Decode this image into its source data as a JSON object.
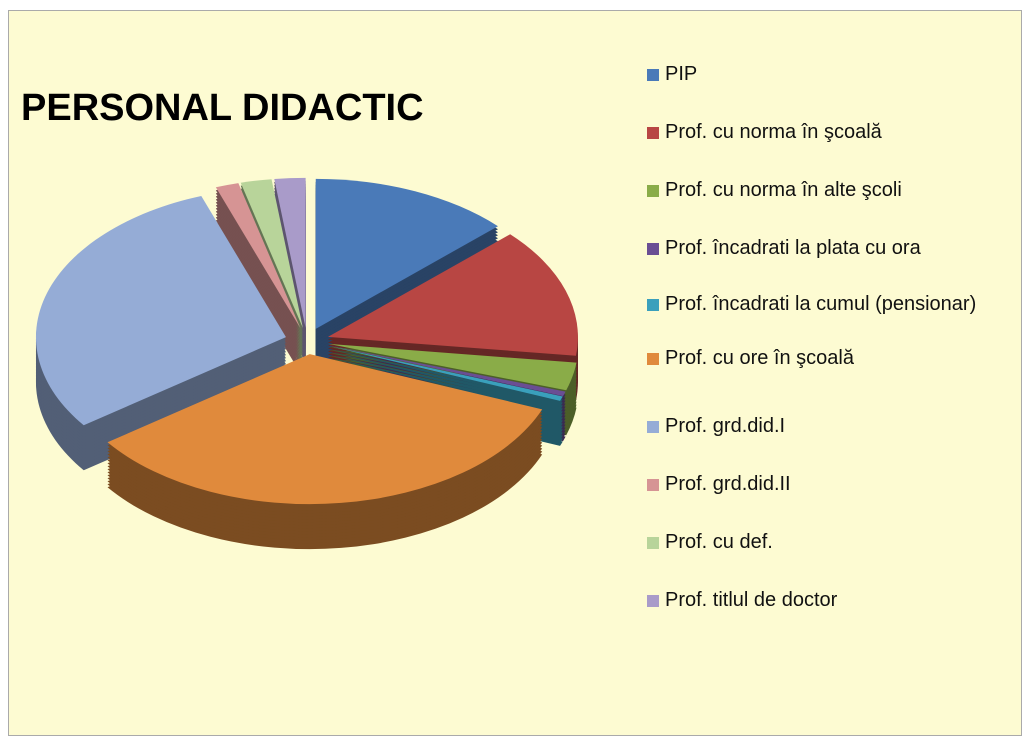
{
  "chart_data": {
    "type": "pie3d",
    "title": "PERSONAL DIDACTIC",
    "series": [
      {
        "name": "PIP",
        "color": "#4a7ab8",
        "value": 13
      },
      {
        "name": "Prof. cu norma în şcoală",
        "color": "#b84643",
        "value": 14
      },
      {
        "name": "Prof. cu norma în alte şcoli",
        "color": "#8aac48",
        "value": 3
      },
      {
        "name": "Prof. încadrati la plata cu ora",
        "color": "#6a4e94",
        "value": 0.5
      },
      {
        "name": "Prof. încadrati la cumul (pensionar)",
        "color": "#3aa0bc",
        "value": 0.5
      },
      {
        "name": "Prof. cu ore în şcoală",
        "color": "#e08a3c",
        "value": 34
      },
      {
        "name": "Prof. grd.did.I",
        "color": "#95acd6",
        "value": 29.5
      },
      {
        "name": "Prof. grd.did.II",
        "color": "#d69494",
        "value": 1.5
      },
      {
        "name": "Prof. cu def.",
        "color": "#b8d49a",
        "value": 2
      },
      {
        "name": "Prof. titlul de doctor",
        "color": "#a99bc9",
        "value": 2
      }
    ],
    "legend": "right"
  }
}
